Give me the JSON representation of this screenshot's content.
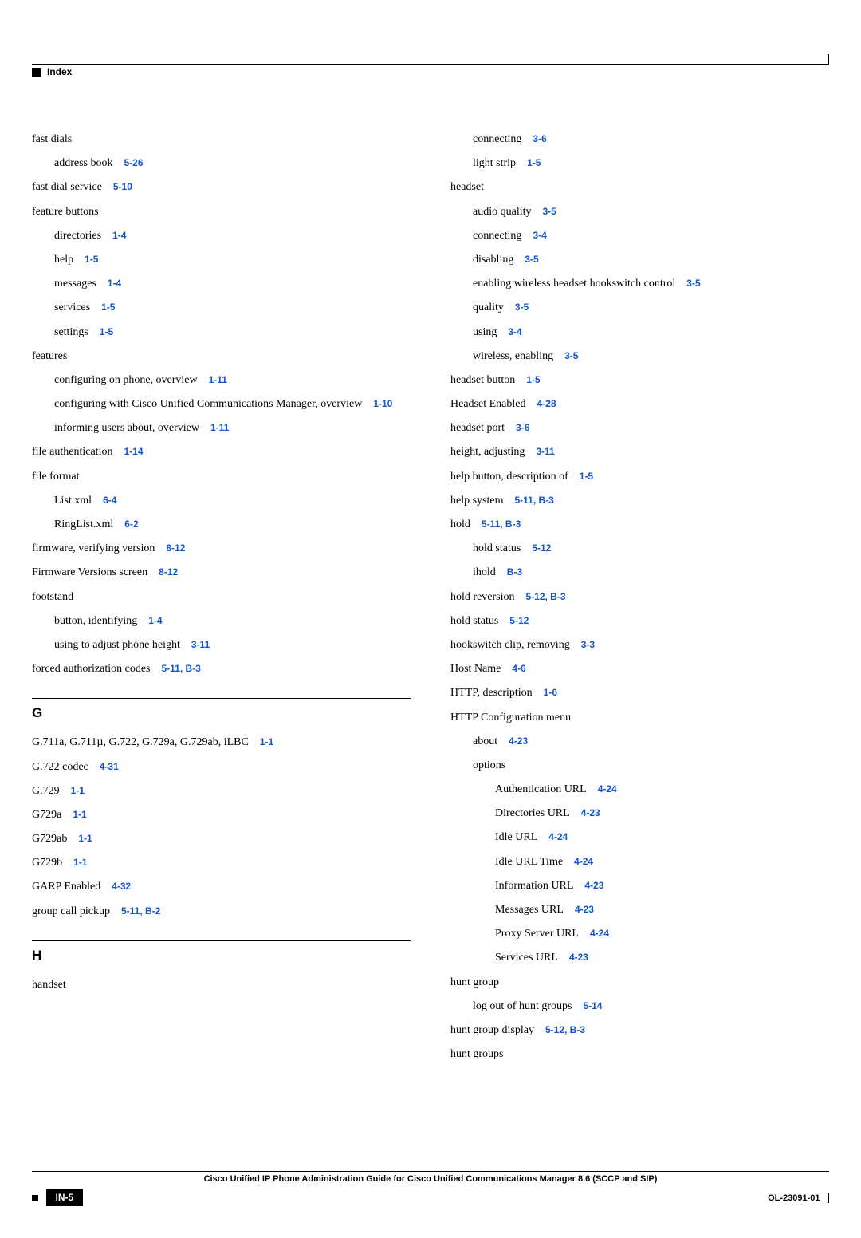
{
  "header": {
    "label": "Index"
  },
  "footer": {
    "title": "Cisco Unified IP Phone Administration Guide for Cisco Unified Communications Manager 8.6 (SCCP and SIP)",
    "page": "IN-5",
    "docid": "OL-23091-01"
  },
  "sections": {
    "G": "G",
    "H": "H"
  },
  "left": [
    {
      "t": "fast dials",
      "i": 0
    },
    {
      "t": "address book",
      "r": "5-26",
      "i": 1
    },
    {
      "t": "fast dial service",
      "r": "5-10",
      "i": 0
    },
    {
      "t": "feature buttons",
      "i": 0
    },
    {
      "t": "directories",
      "r": "1-4",
      "i": 1
    },
    {
      "t": "help",
      "r": "1-5",
      "i": 1
    },
    {
      "t": "messages",
      "r": "1-4",
      "i": 1
    },
    {
      "t": "services",
      "r": "1-5",
      "i": 1
    },
    {
      "t": "settings",
      "r": "1-5",
      "i": 1
    },
    {
      "t": "features",
      "i": 0
    },
    {
      "t": "configuring on phone, overview",
      "r": "1-11",
      "i": 1
    },
    {
      "t": "configuring with Cisco Unified Communications Manager, overview",
      "r": "1-10",
      "i": 1
    },
    {
      "t": "informing users about, overview",
      "r": "1-11",
      "i": 1
    },
    {
      "t": "file authentication",
      "r": "1-14",
      "i": 0
    },
    {
      "t": "file format",
      "i": 0
    },
    {
      "t": "List.xml",
      "r": "6-4",
      "i": 1
    },
    {
      "t": "RingList.xml",
      "r": "6-2",
      "i": 1
    },
    {
      "t": "firmware, verifying version",
      "r": "8-12",
      "i": 0
    },
    {
      "t": "Firmware Versions screen",
      "r": "8-12",
      "i": 0
    },
    {
      "t": "footstand",
      "i": 0
    },
    {
      "t": "button, identifying",
      "r": "1-4",
      "i": 1
    },
    {
      "t": "using to adjust phone height",
      "r": "3-11",
      "i": 1
    },
    {
      "t": "forced authorization codes",
      "r": "5-11, B-3",
      "i": 0
    }
  ],
  "leftG": [
    {
      "t": "G.711a, G.711µ, G.722, G.729a, G.729ab, iLBC",
      "r": "1-1",
      "i": 0
    },
    {
      "t": "G.722 codec",
      "r": "4-31",
      "i": 0
    },
    {
      "t": "G.729",
      "r": "1-1",
      "i": 0
    },
    {
      "t": "G729a",
      "r": "1-1",
      "i": 0
    },
    {
      "t": "G729ab",
      "r": "1-1",
      "i": 0
    },
    {
      "t": "G729b",
      "r": "1-1",
      "i": 0
    },
    {
      "t": "GARP Enabled",
      "r": "4-32",
      "i": 0
    },
    {
      "t": "group call pickup",
      "r": "5-11, B-2",
      "i": 0
    }
  ],
  "leftH": [
    {
      "t": "handset",
      "i": 0
    }
  ],
  "right": [
    {
      "t": "connecting",
      "r": "3-6",
      "i": 1
    },
    {
      "t": "light strip",
      "r": "1-5",
      "i": 1
    },
    {
      "t": "headset",
      "i": 0
    },
    {
      "t": "audio quality",
      "r": "3-5",
      "i": 1
    },
    {
      "t": "connecting",
      "r": "3-4",
      "i": 1
    },
    {
      "t": "disabling",
      "r": "3-5",
      "i": 1
    },
    {
      "t": "enabling wireless headset hookswitch control",
      "r": "3-5",
      "i": 1
    },
    {
      "t": "quality",
      "r": "3-5",
      "i": 1
    },
    {
      "t": "using",
      "r": "3-4",
      "i": 1
    },
    {
      "t": "wireless, enabling",
      "r": "3-5",
      "i": 1
    },
    {
      "t": "headset button",
      "r": "1-5",
      "i": 0
    },
    {
      "t": "Headset Enabled",
      "r": "4-28",
      "i": 0
    },
    {
      "t": "headset port",
      "r": "3-6",
      "i": 0
    },
    {
      "t": "height, adjusting",
      "r": "3-11",
      "i": 0
    },
    {
      "t": "help button, description of",
      "r": "1-5",
      "i": 0
    },
    {
      "t": "help system",
      "r": "5-11, B-3",
      "i": 0
    },
    {
      "t": "hold",
      "r": "5-11, B-3",
      "i": 0
    },
    {
      "t": "hold status",
      "r": "5-12",
      "i": 1
    },
    {
      "t": "ihold",
      "r": "B-3",
      "i": 1
    },
    {
      "t": "hold reversion",
      "r": "5-12, B-3",
      "i": 0
    },
    {
      "t": "hold status",
      "r": "5-12",
      "i": 0
    },
    {
      "t": "hookswitch clip, removing",
      "r": "3-3",
      "i": 0
    },
    {
      "t": "Host Name",
      "r": "4-6",
      "i": 0
    },
    {
      "t": "HTTP, description",
      "r": "1-6",
      "i": 0
    },
    {
      "t": "HTTP Configuration menu",
      "i": 0
    },
    {
      "t": "about",
      "r": "4-23",
      "i": 1
    },
    {
      "t": "options",
      "i": 1
    },
    {
      "t": "Authentication URL",
      "r": "4-24",
      "i": 2
    },
    {
      "t": "Directories URL",
      "r": "4-23",
      "i": 2
    },
    {
      "t": "Idle URL",
      "r": "4-24",
      "i": 2
    },
    {
      "t": "Idle URL Time",
      "r": "4-24",
      "i": 2
    },
    {
      "t": "Information URL",
      "r": "4-23",
      "i": 2
    },
    {
      "t": "Messages URL",
      "r": "4-23",
      "i": 2
    },
    {
      "t": "Proxy Server URL",
      "r": "4-24",
      "i": 2
    },
    {
      "t": "Services URL",
      "r": "4-23",
      "i": 2
    },
    {
      "t": "hunt group",
      "i": 0
    },
    {
      "t": "log out of hunt groups",
      "r": "5-14",
      "i": 1
    },
    {
      "t": "hunt group display",
      "r": "5-12, B-3",
      "i": 0
    },
    {
      "t": "hunt groups",
      "i": 0
    }
  ]
}
